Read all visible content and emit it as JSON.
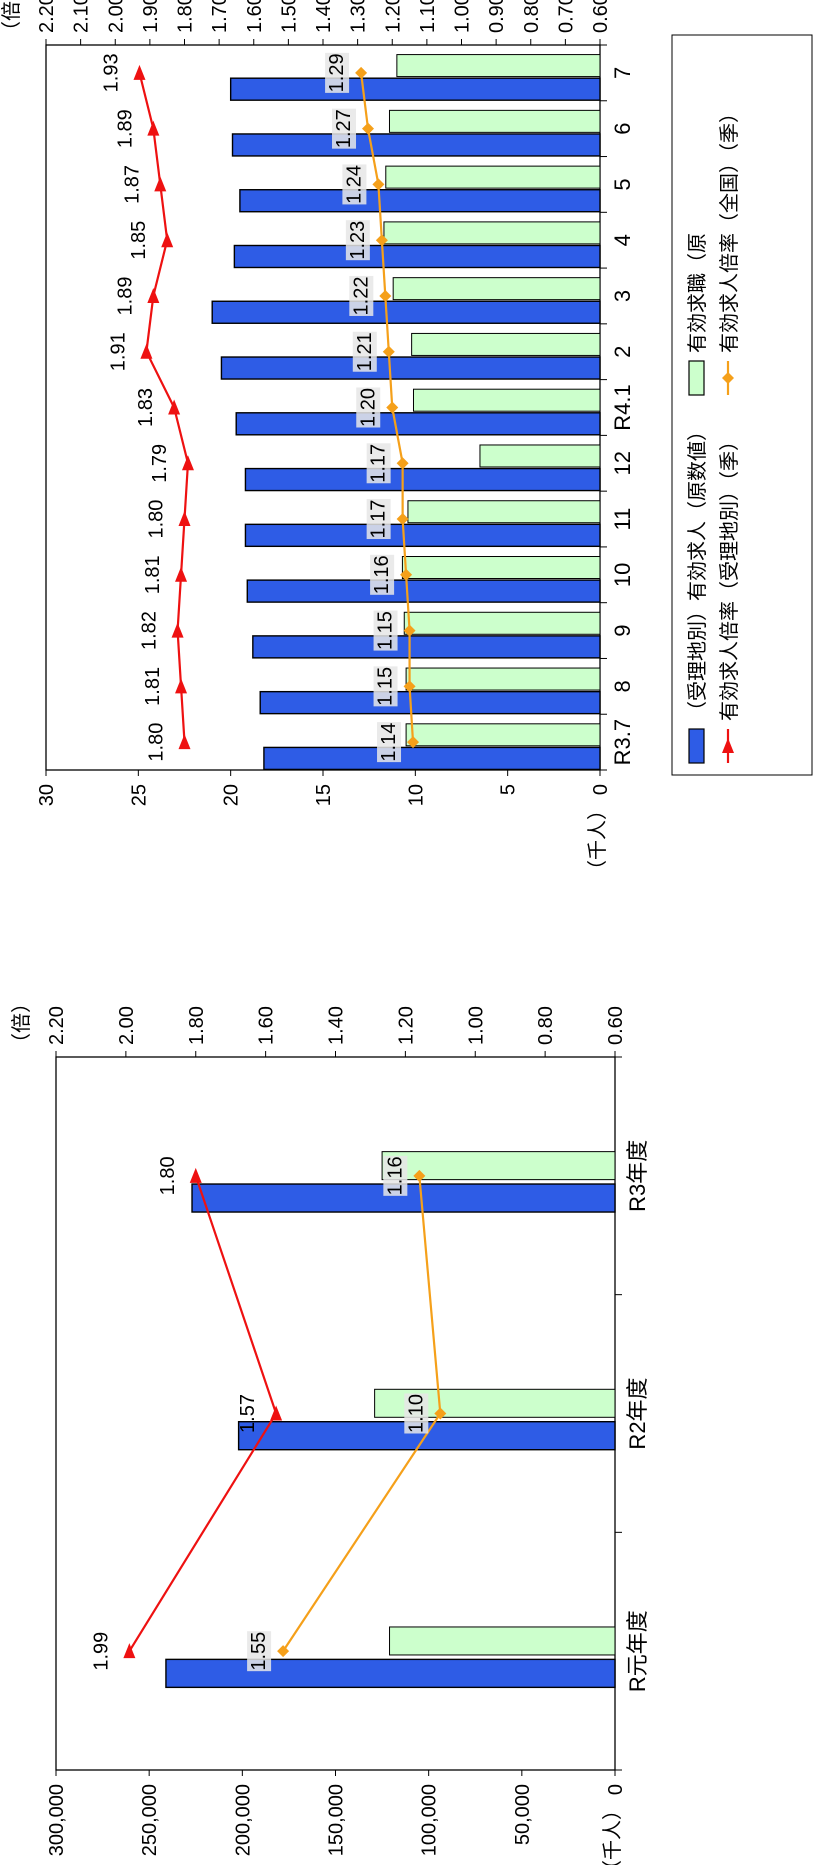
{
  "colors": {
    "jobs": "#2e5ce6",
    "seekers": "#ccffcc",
    "ratio_local": "#ee1111",
    "ratio_national": "#f5a01a",
    "frame": "#000000",
    "label_bg": "#e6e6e6"
  },
  "icons": {
    "marker_local": "triangle-marker",
    "marker_national": "diamond-marker"
  },
  "chart_data": [
    {
      "type": "bar",
      "unit_left": "（千人）",
      "unit_right": "（倍）",
      "categories": [
        "R元年度",
        "R2年度",
        "R3年度"
      ],
      "ylim_left": [
        0,
        300000
      ],
      "yticks_left": [
        "0",
        "50,000",
        "100,000",
        "150,000",
        "200,000",
        "250,000",
        "300,000"
      ],
      "ylim_right": [
        0.6,
        2.2
      ],
      "yticks_right": [
        "0.60",
        "0.80",
        "1.00",
        "1.20",
        "1.40",
        "1.60",
        "1.80",
        "2.00",
        "2.20"
      ],
      "bar_series": [
        {
          "key": "jobs",
          "values": [
            241000,
            202000,
            227000
          ]
        },
        {
          "key": "seekers",
          "values": [
            121000,
            129000,
            125000
          ]
        }
      ],
      "line_series": [
        {
          "key": "ratio_local",
          "values": [
            1.99,
            1.57,
            1.8
          ],
          "labels": [
            "1.99",
            "1.57",
            "1.80"
          ]
        },
        {
          "key": "ratio_national",
          "values": [
            1.55,
            1.1,
            1.16
          ],
          "labels": [
            "1.55",
            "1.10",
            "1.16"
          ]
        }
      ]
    },
    {
      "type": "bar",
      "unit_left": "（千人）",
      "unit_right": "（倍）",
      "categories": [
        "R3.7",
        "8",
        "9",
        "10",
        "11",
        "12",
        "R4.1",
        "2",
        "3",
        "4",
        "5",
        "6",
        "7"
      ],
      "ylim_left": [
        0,
        30
      ],
      "yticks_left": [
        "0",
        "5",
        "10",
        "15",
        "20",
        "25",
        "30"
      ],
      "ylim_right": [
        0.6,
        2.2
      ],
      "yticks_right": [
        "0.60",
        "0.70",
        "0.80",
        "0.90",
        "1.00",
        "1.10",
        "1.20",
        "1.30",
        "1.40",
        "1.50",
        "1.60",
        "1.70",
        "1.80",
        "1.90",
        "2.00",
        "2.10",
        "2.20"
      ],
      "bar_series": [
        {
          "key": "jobs",
          "values": [
            18.2,
            18.4,
            18.8,
            19.1,
            19.2,
            19.2,
            19.7,
            20.5,
            21.0,
            19.8,
            19.5,
            19.9,
            20.0
          ]
        },
        {
          "key": "seekers",
          "values": [
            10.5,
            10.5,
            10.6,
            10.7,
            10.4,
            6.5,
            10.1,
            10.2,
            11.2,
            11.7,
            11.6,
            11.4,
            11.0
          ]
        }
      ],
      "line_series": [
        {
          "key": "ratio_local",
          "values": [
            1.8,
            1.81,
            1.82,
            1.81,
            1.8,
            1.79,
            1.83,
            1.91,
            1.89,
            1.85,
            1.87,
            1.89,
            1.93
          ],
          "labels": [
            "1.80",
            "1.81",
            "1.82",
            "1.81",
            "1.80",
            "1.79",
            "1.83",
            "1.91",
            "1.89",
            "1.85",
            "1.87",
            "1.89",
            "1.93"
          ]
        },
        {
          "key": "ratio_national",
          "values": [
            1.14,
            1.15,
            1.15,
            1.16,
            1.17,
            1.17,
            1.2,
            1.21,
            1.22,
            1.23,
            1.24,
            1.27,
            1.29
          ],
          "labels": [
            "1.14",
            "1.15",
            "1.15",
            "1.16",
            "1.17",
            "1.17",
            "1.20",
            "1.21",
            "1.22",
            "1.23",
            "1.24",
            "1.27",
            "1.29"
          ]
        }
      ],
      "legend": [
        {
          "key": "jobs",
          "kind": "bar",
          "label": "（受理地別）有効求人（原数値）"
        },
        {
          "key": "seekers",
          "kind": "bar",
          "label": "有効求職（原"
        },
        {
          "key": "ratio_local",
          "kind": "line-triangle",
          "label": "有効求人倍率（受理地別）（季）"
        },
        {
          "key": "ratio_national",
          "kind": "line-diamond",
          "label": "有効求人倍率（全国）（季）"
        }
      ]
    }
  ]
}
